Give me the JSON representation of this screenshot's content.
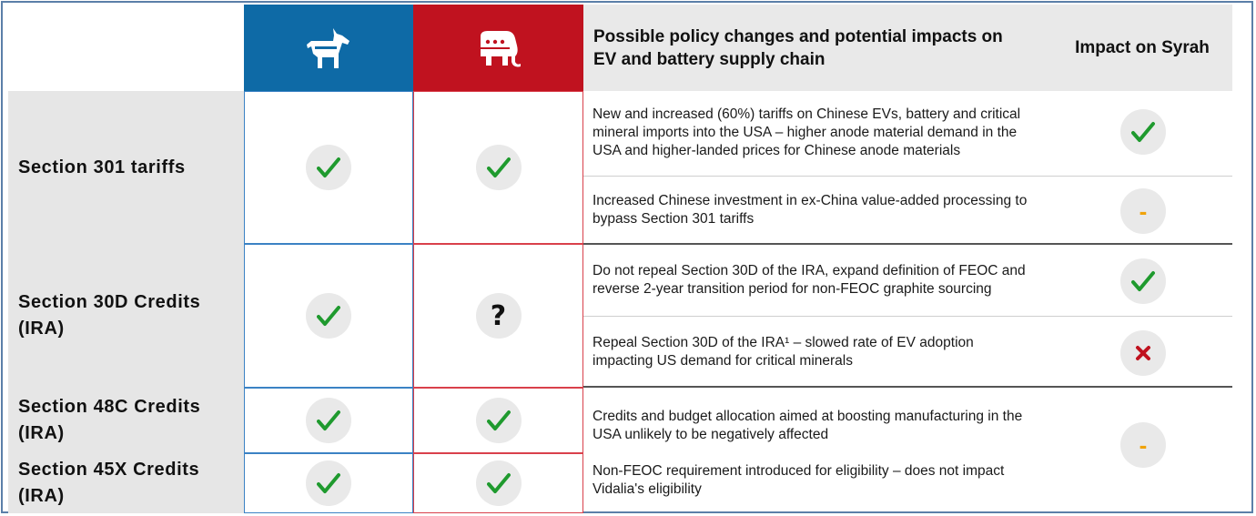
{
  "header": {
    "title": "Possible policy changes and potential impacts on EV and battery supply chain",
    "impact_title": "Impact on Syrah",
    "dem_icon": "donkey-icon",
    "rep_icon": "elephant-icon"
  },
  "colors": {
    "democrat": "#0e6aa6",
    "republican": "#c0121f",
    "check": "#1f9a2e",
    "cross": "#c0121f",
    "neutral": "#f0a30a"
  },
  "rows": [
    {
      "label": "Section 301 tariffs",
      "dem": "check",
      "rep": "check",
      "impacts": [
        {
          "text": "New and increased (60%) tariffs on Chinese EVs, battery and critical mineral imports into the USA – higher anode material demand in the USA and higher-landed prices for Chinese anode materials",
          "impact": "check"
        },
        {
          "text": "Increased Chinese investment in ex-China value-added processing to bypass Section 301 tariffs",
          "impact": "neutral"
        }
      ]
    },
    {
      "label": "Section 30D Credits (IRA)",
      "dem": "check",
      "rep": "?",
      "impacts": [
        {
          "text": "Do not repeal Section 30D of the IRA, expand definition of FEOC and reverse 2-year transition period for non-FEOC graphite sourcing",
          "impact": "check"
        },
        {
          "text": "Repeal Section 30D of the IRA¹ – slowed rate of EV adoption impacting US demand for critical minerals",
          "impact": "cross"
        }
      ]
    },
    {
      "label": "Section 48C Credits (IRA)",
      "dem": "check",
      "rep": "check"
    },
    {
      "label": "Section 45X Credits (IRA)",
      "dem": "check",
      "rep": "check"
    }
  ],
  "shared_impacts": [
    {
      "text": "Credits and budget allocation aimed at boosting manufacturing in the USA unlikely to be negatively affected"
    },
    {
      "text": "Non-FEOC requirement introduced for eligibility – does not impact Vidalia's eligibility"
    }
  ],
  "shared_impact_value": "neutral",
  "marks": {
    "question": "?",
    "dash": "-",
    "cross": "✘"
  }
}
